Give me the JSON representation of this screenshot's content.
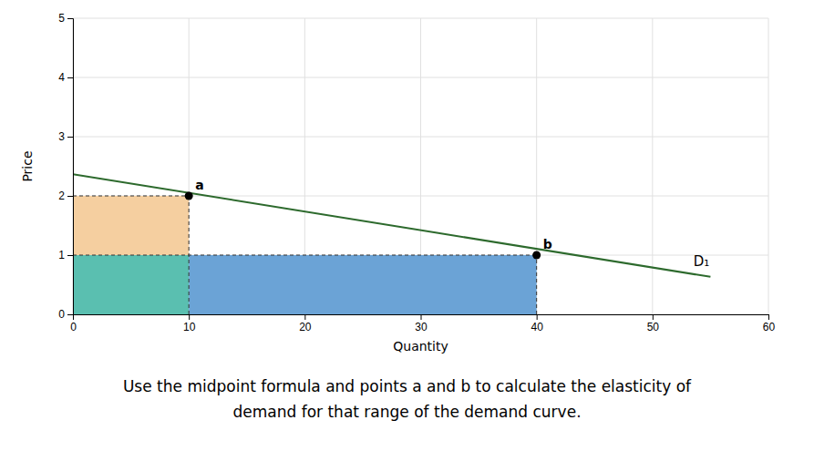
{
  "chart_data": {
    "type": "line",
    "xlabel": "Quantity",
    "ylabel": "Price",
    "xlim": [
      0,
      60
    ],
    "ylim": [
      0,
      5
    ],
    "xticks": [
      0,
      10,
      20,
      30,
      40,
      50,
      60
    ],
    "yticks": [
      0,
      1,
      2,
      3,
      4,
      5
    ],
    "grid": true,
    "series": [
      {
        "name": "D₁",
        "type": "line",
        "color": "#2d6a2d",
        "line_style": "solid",
        "x": [
          0,
          55
        ],
        "values": [
          2.367,
          0.633
        ]
      },
      {
        "type": "scatter",
        "color": "#000000",
        "marker": "circle",
        "x": [
          10,
          40
        ],
        "values": [
          2,
          1
        ],
        "labels": [
          "a",
          "b"
        ]
      }
    ],
    "rects": [
      {
        "x": 0,
        "y": 1,
        "width": 10,
        "height": 1,
        "color": "#F5CFA0"
      },
      {
        "x": 0,
        "y": 0,
        "width": 10,
        "height": 1,
        "color": "#5ABFB0"
      },
      {
        "x": 10,
        "y": 0,
        "width": 30,
        "height": 1,
        "color": "#6BA3D6"
      }
    ],
    "annotations": [
      "Use the midpoint formula and points a and b to calculate the elasticity of",
      "demand for that range of the demand curve."
    ]
  }
}
